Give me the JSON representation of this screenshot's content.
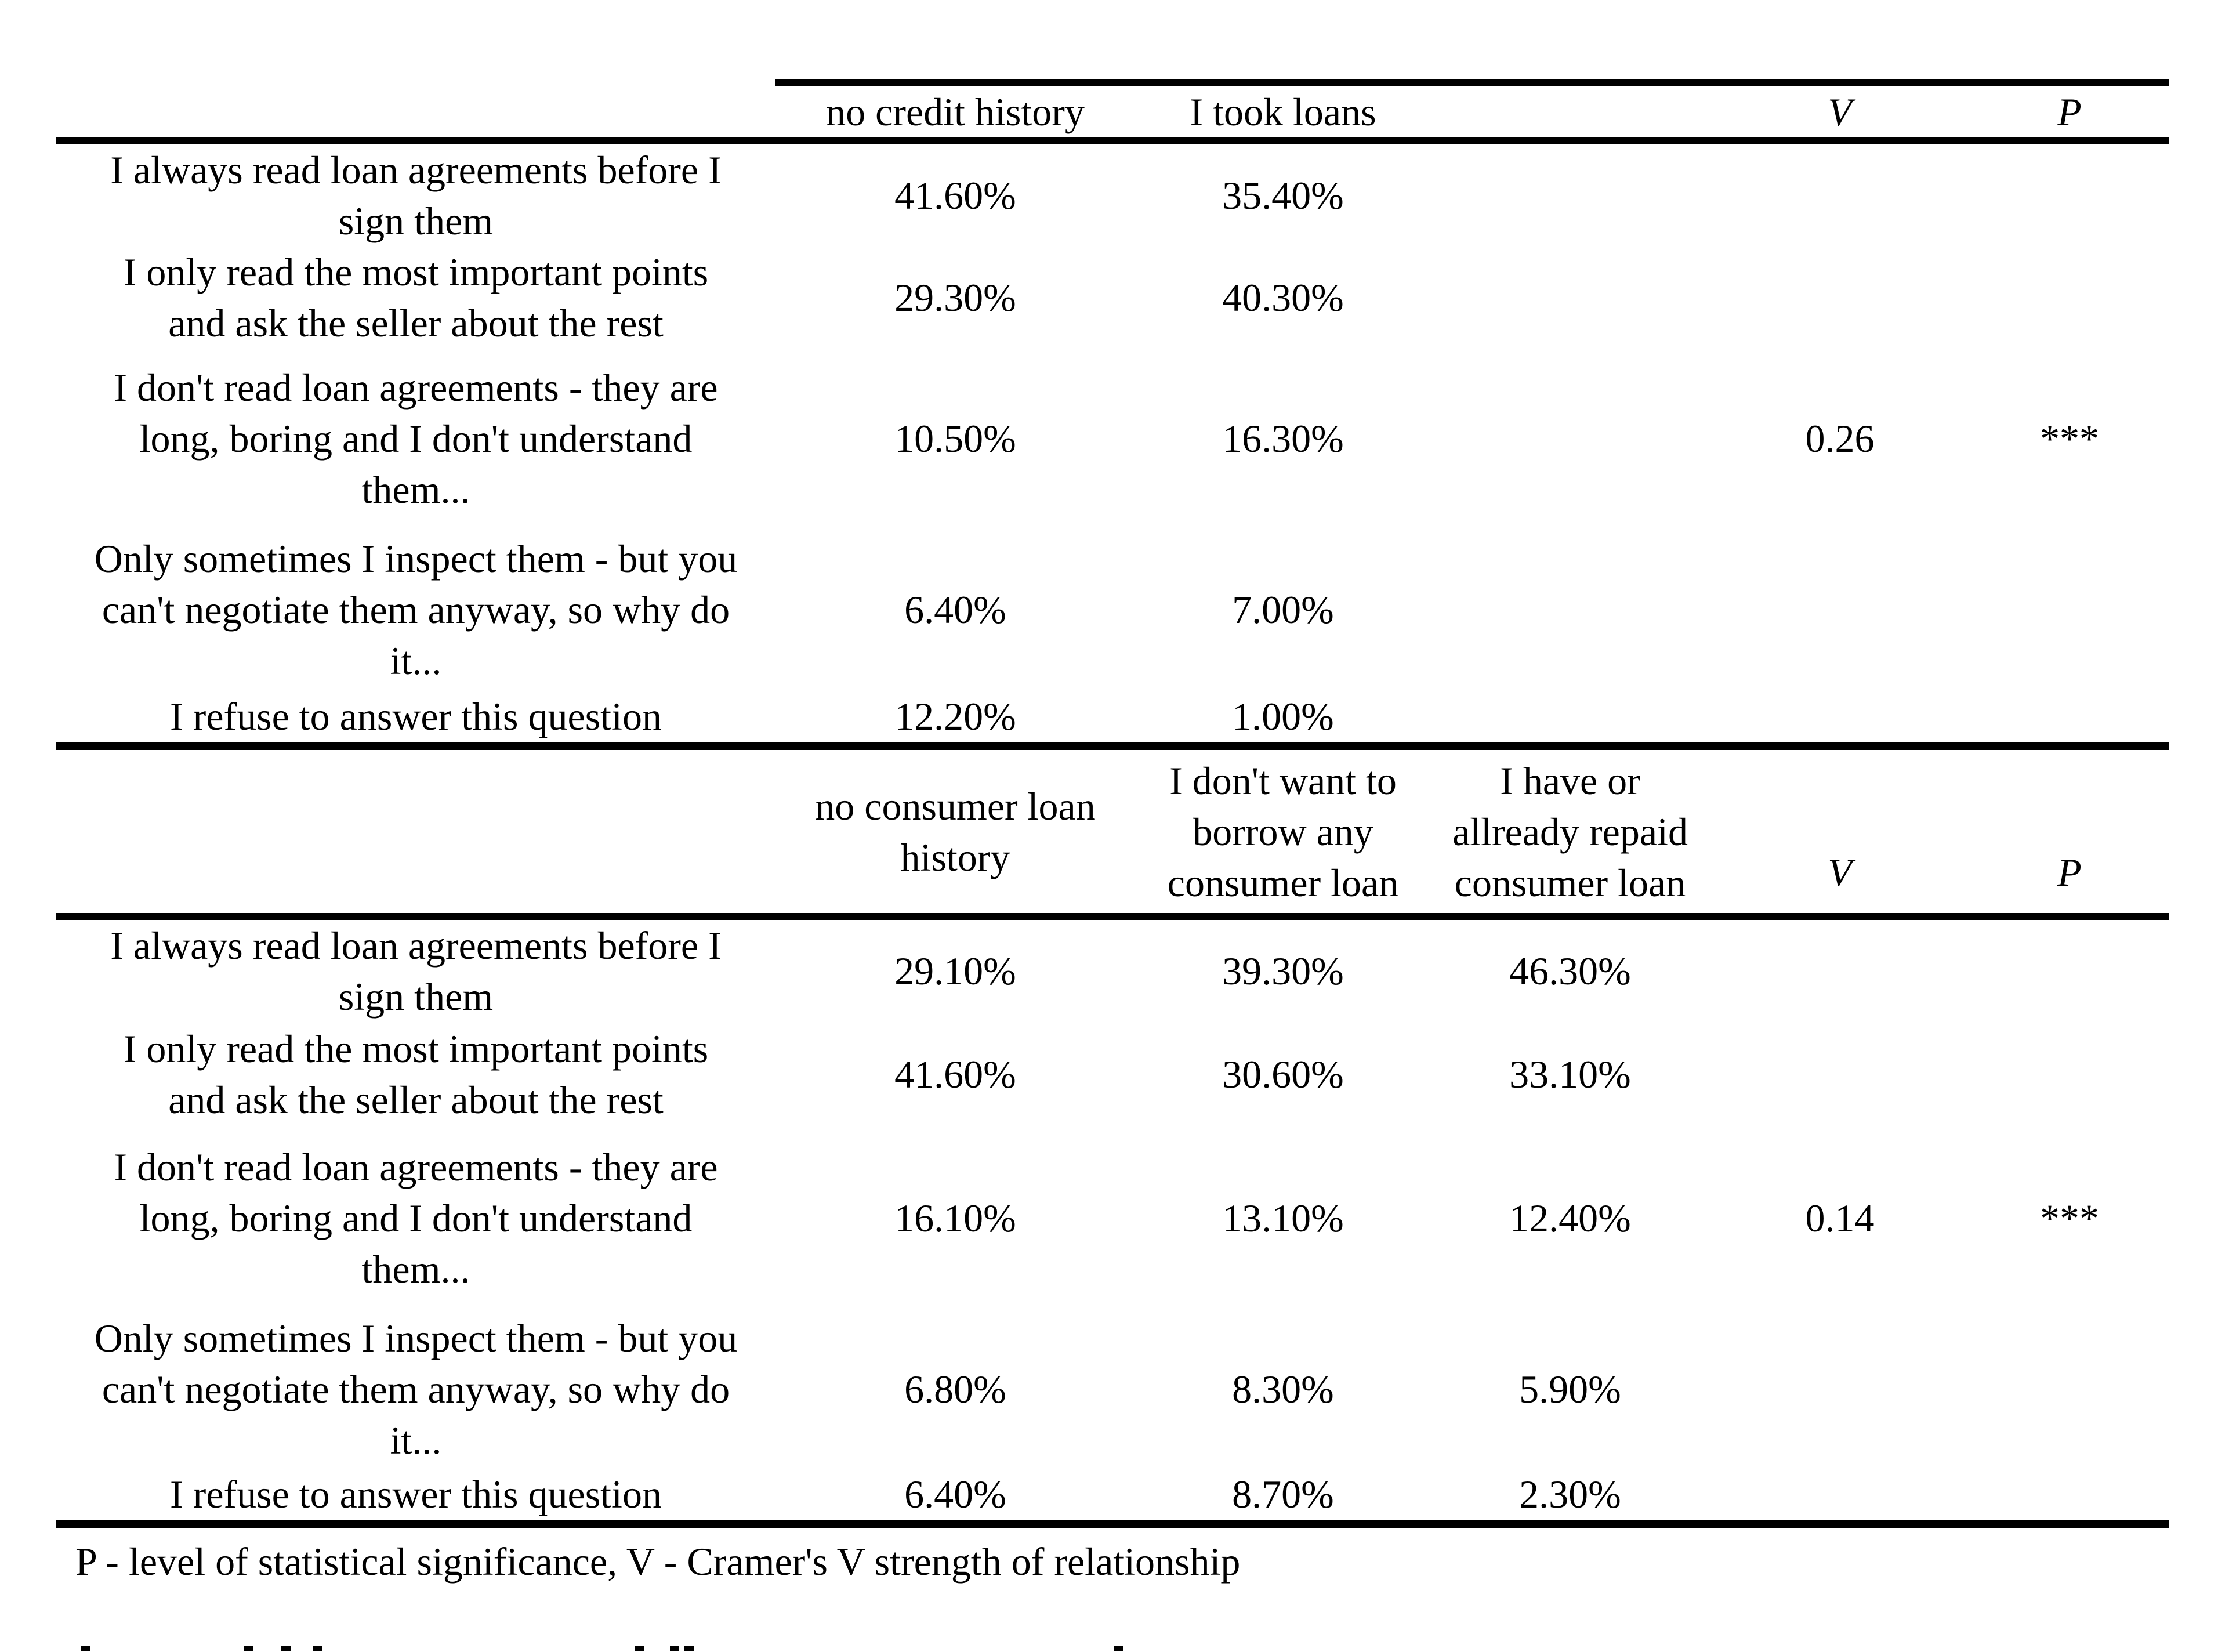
{
  "colors": {
    "background": "#ffffff",
    "text": "#000000",
    "rule": "#000000"
  },
  "table": {
    "sections": [
      {
        "column_headers": [
          "no credit history",
          "I took loans",
          "",
          "V",
          "P"
        ],
        "rows": [
          {
            "label": "I always read loan agreements before I sign them",
            "values": [
              "41.60%",
              "35.40%",
              "",
              "",
              ""
            ]
          },
          {
            "label": "I only read the most important points and ask the seller about the rest",
            "values": [
              "29.30%",
              "40.30%",
              "",
              "",
              ""
            ]
          },
          {
            "label": "I don't read loan agreements - they are long, boring and I don't understand them...",
            "values": [
              "10.50%",
              "16.30%",
              "",
              "0.26",
              "***"
            ]
          },
          {
            "label": "Only sometimes I inspect them - but you can't negotiate them anyway, so why do it...",
            "values": [
              "6.40%",
              "7.00%",
              "",
              "",
              ""
            ]
          },
          {
            "label": "I refuse to answer this question",
            "values": [
              "12.20%",
              "1.00%",
              "",
              "",
              ""
            ]
          }
        ]
      },
      {
        "column_headers": [
          "no consumer loan history",
          "I don't want to borrow any consumer loan",
          "I have or allready repaid consumer loan",
          "V",
          "P"
        ],
        "rows": [
          {
            "label": "I always read loan agreements before I sign them",
            "values": [
              "29.10%",
              "39.30%",
              "46.30%",
              "",
              ""
            ]
          },
          {
            "label": "I only read the most important points and ask the seller about the rest",
            "values": [
              "41.60%",
              "30.60%",
              "33.10%",
              "",
              ""
            ]
          },
          {
            "label": "I don't read loan agreements - they are long, boring and I don't understand them...",
            "values": [
              "16.10%",
              "13.10%",
              "12.40%",
              "0.14",
              "***"
            ]
          },
          {
            "label": "Only sometimes I inspect them - but you can't negotiate them anyway, so why do it...",
            "values": [
              "6.80%",
              "8.30%",
              "5.90%",
              "",
              ""
            ]
          },
          {
            "label": "I refuse to answer this question",
            "values": [
              "6.40%",
              "8.70%",
              "2.30%",
              "",
              ""
            ]
          }
        ]
      }
    ],
    "footnote": "P - level of statistical significance, V - Cramer's V strength of relationship"
  }
}
